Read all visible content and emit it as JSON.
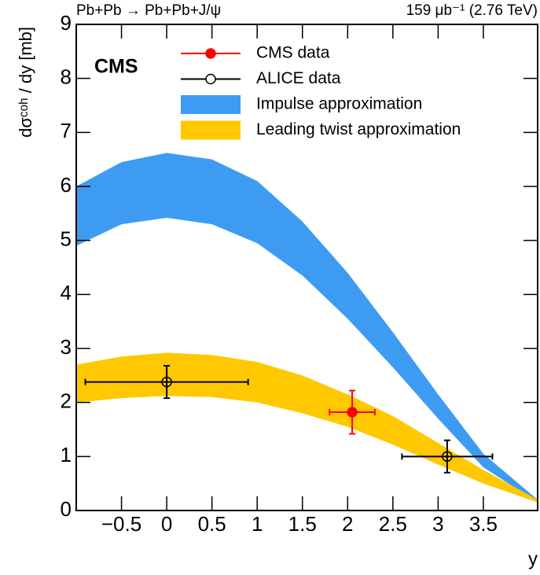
{
  "chart_data": {
    "type": "errorbar",
    "process_label": "Pb+Pb → Pb+Pb+J/ψ",
    "lumi_label": "159 μb⁻¹ (2.76 TeV)",
    "experiment_label": "CMS",
    "x_label": "y",
    "y_label": "dσᶜᵒʰ / dy [mb]",
    "xlim": [
      -1,
      4.1
    ],
    "ylim": [
      0,
      9
    ],
    "xticks": [
      {
        "value": -0.5,
        "label": "−0.5"
      },
      0,
      0.5,
      1,
      1.5,
      2,
      2.5,
      3,
      3.5
    ],
    "yticks": [
      0,
      1,
      2,
      3,
      4,
      5,
      6,
      7,
      8,
      9
    ],
    "legend": "upper-right",
    "series": [
      {
        "name": "CMS data",
        "kind": "points",
        "filled": true,
        "color": "#ff0000",
        "x": [
          2.05
        ],
        "values": [
          1.82
        ],
        "xerr": [
          0.25
        ],
        "yerr": [
          0.4
        ]
      },
      {
        "name": "ALICE data",
        "kind": "points",
        "filled": false,
        "color": "#000000",
        "x": [
          0,
          3.1
        ],
        "values": [
          2.38,
          1.0
        ],
        "xerr": [
          0.9,
          0.5
        ],
        "yerr": [
          0.3,
          0.3
        ]
      },
      {
        "name": "Impulse approximation",
        "kind": "band",
        "color": "#3d9cf2",
        "x": [
          -1,
          -0.5,
          0,
          0.5,
          1,
          1.5,
          2,
          2.5,
          3,
          3.5,
          4.1
        ],
        "upper": [
          6.0,
          6.45,
          6.62,
          6.5,
          6.1,
          5.35,
          4.4,
          3.3,
          2.15,
          1.05,
          0.2
        ],
        "lower": [
          4.9,
          5.3,
          5.42,
          5.3,
          4.95,
          4.35,
          3.55,
          2.65,
          1.7,
          0.8,
          0.15
        ]
      },
      {
        "name": "Leading twist approximation",
        "kind": "band",
        "color": "#ffc800",
        "x": [
          -1,
          -0.5,
          0,
          0.5,
          1,
          1.5,
          2,
          2.5,
          3,
          3.5,
          4.1
        ],
        "upper": [
          2.7,
          2.85,
          2.92,
          2.88,
          2.75,
          2.5,
          2.15,
          1.75,
          1.25,
          0.75,
          0.2
        ],
        "lower": [
          2.0,
          2.08,
          2.12,
          2.1,
          2.0,
          1.8,
          1.55,
          1.22,
          0.85,
          0.5,
          0.15
        ]
      }
    ]
  }
}
